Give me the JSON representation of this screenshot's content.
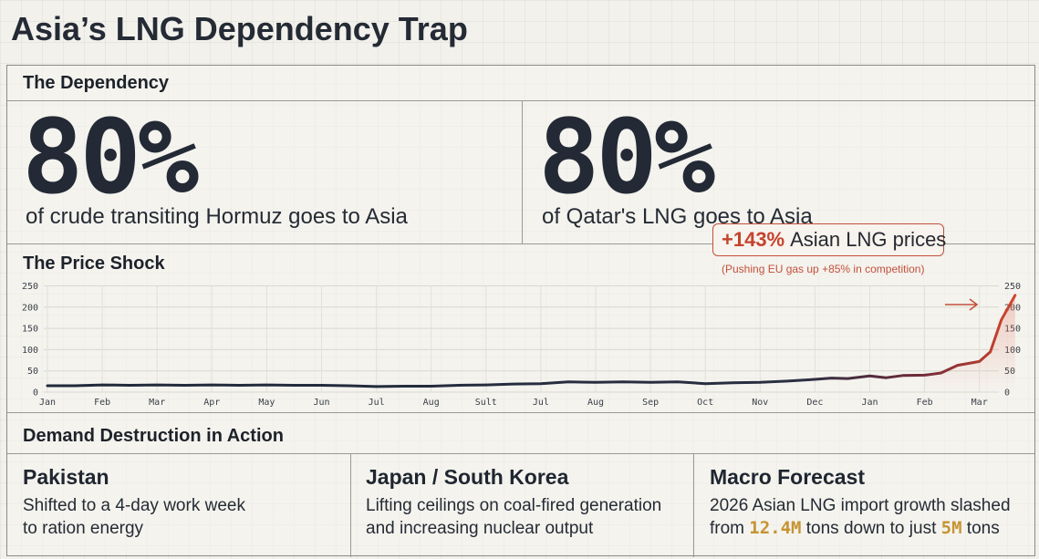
{
  "title": "Asia’s LNG Dependency Trap",
  "dependency": {
    "heading": "The Dependency",
    "stats": [
      {
        "value": "80%",
        "caption": "of crude transiting Hormuz goes to Asia"
      },
      {
        "value": "80%",
        "caption": "of Qatar's LNG goes to Asia"
      }
    ]
  },
  "price_shock": {
    "heading": "The Price Shock",
    "callout": {
      "highlight": "+143%",
      "text": "Asian LNG prices",
      "sub": "(Pushing EU gas up +85% in competition)"
    }
  },
  "chart_data": {
    "type": "line",
    "x": [
      "Jan",
      "Feb",
      "Mar",
      "Apr",
      "May",
      "Jun",
      "Jul",
      "Aug",
      "Sult",
      "Jul",
      "Aug",
      "Sep",
      "Oct",
      "Nov",
      "Dec",
      "Jan",
      "Feb",
      "Mar"
    ],
    "yticks": [
      0,
      50,
      100,
      150,
      200,
      250
    ],
    "ylim": [
      0,
      250
    ],
    "grid": true,
    "points": [
      [
        0,
        15
      ],
      [
        0.5,
        15
      ],
      [
        1,
        17
      ],
      [
        1.5,
        16
      ],
      [
        2,
        17
      ],
      [
        2.5,
        16
      ],
      [
        3,
        17
      ],
      [
        3.5,
        16
      ],
      [
        4,
        17
      ],
      [
        4.5,
        16
      ],
      [
        5,
        16
      ],
      [
        5.5,
        15
      ],
      [
        6,
        13
      ],
      [
        6.5,
        14
      ],
      [
        7,
        14
      ],
      [
        7.5,
        16
      ],
      [
        8,
        17
      ],
      [
        8.5,
        19
      ],
      [
        9,
        20
      ],
      [
        9.5,
        24
      ],
      [
        10,
        23
      ],
      [
        10.5,
        24
      ],
      [
        11,
        23
      ],
      [
        11.5,
        24
      ],
      [
        12,
        20
      ],
      [
        12.5,
        22
      ],
      [
        13,
        23
      ],
      [
        13.5,
        26
      ],
      [
        14,
        30
      ],
      [
        14.3,
        33
      ],
      [
        14.6,
        32
      ],
      [
        15,
        38
      ],
      [
        15.3,
        34
      ],
      [
        15.6,
        39
      ],
      [
        16,
        40
      ],
      [
        16.3,
        45
      ],
      [
        16.6,
        63
      ],
      [
        17,
        72
      ],
      [
        17.2,
        95
      ],
      [
        17.4,
        170
      ],
      [
        17.65,
        228
      ]
    ]
  },
  "demand": {
    "heading": "Demand Destruction in Action",
    "cards": [
      {
        "title": "Pakistan",
        "line1": "Shifted to a 4-day work week",
        "line2": "to ration energy"
      },
      {
        "title": "Japan / South Korea",
        "line1": "Lifting ceilings on coal-fired generation",
        "line2": "and increasing nuclear output"
      },
      {
        "title": "Macro Forecast",
        "line1": "2026 Asian LNG import growth slashed",
        "line2_a": "from ",
        "line2_num1": "12.4M",
        "line2_b": " tons down to just ",
        "line2_num2": "5M",
        "line2_c": " tons"
      }
    ]
  }
}
